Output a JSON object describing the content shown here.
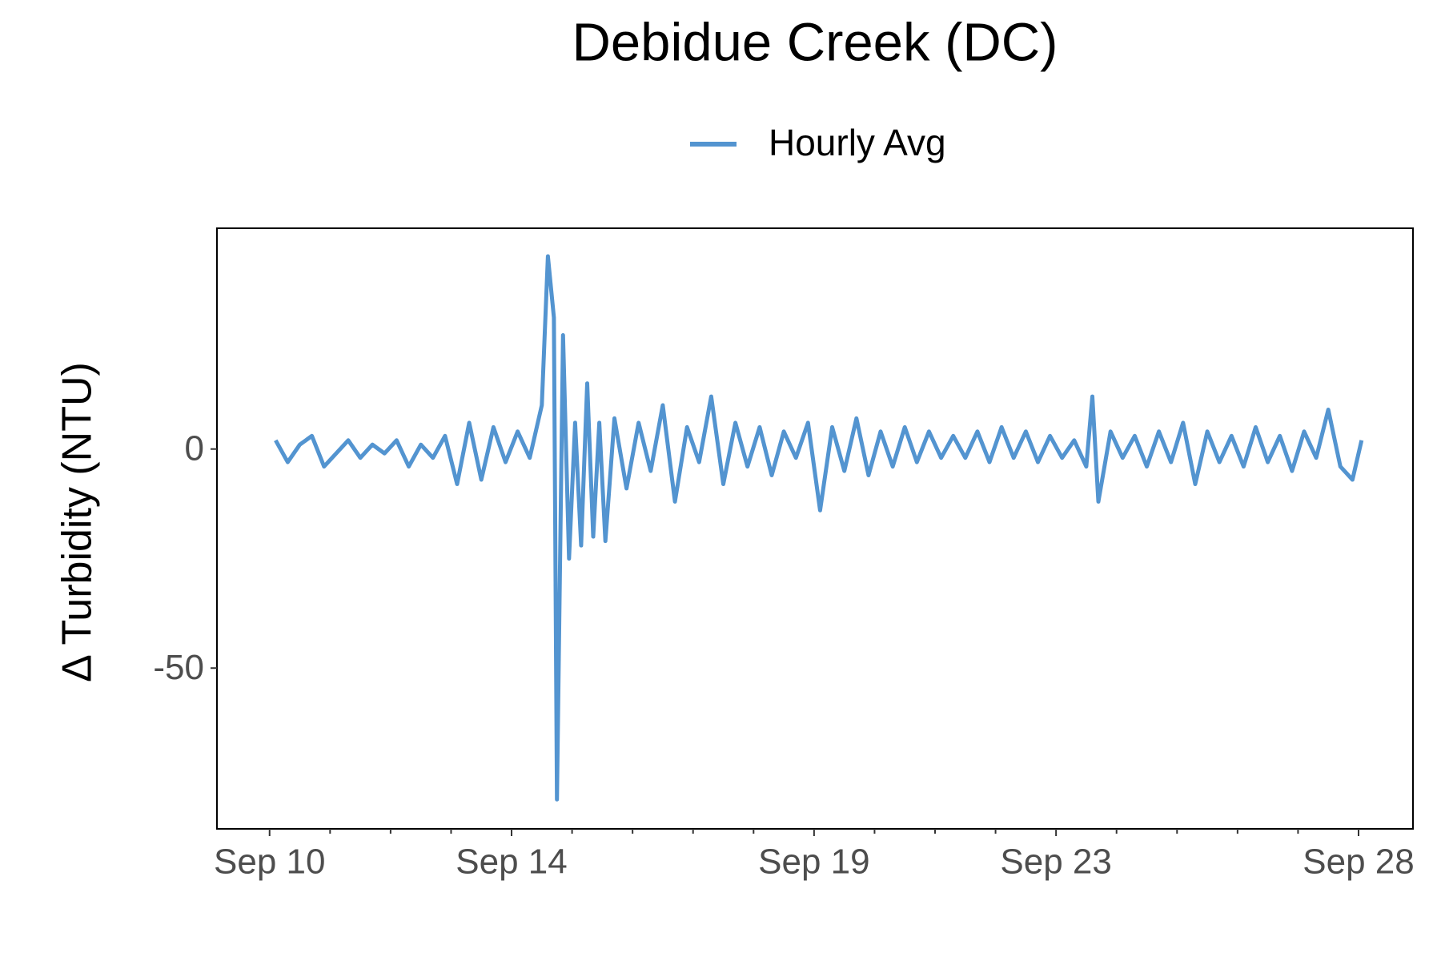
{
  "chart_data": {
    "type": "line",
    "title": "Debidue Creek (DC)",
    "y_label": "Δ Turbidity (NTU)",
    "x": [
      10.1,
      10.3,
      10.5,
      10.7,
      10.9,
      11.1,
      11.3,
      11.5,
      11.7,
      11.9,
      12.1,
      12.3,
      12.5,
      12.7,
      12.9,
      13.1,
      13.3,
      13.5,
      13.7,
      13.9,
      14.1,
      14.3,
      14.5,
      14.6,
      14.7,
      14.75,
      14.85,
      14.95,
      15.05,
      15.15,
      15.25,
      15.35,
      15.45,
      15.55,
      15.7,
      15.9,
      16.1,
      16.3,
      16.5,
      16.7,
      16.9,
      17.1,
      17.3,
      17.5,
      17.7,
      17.9,
      18.1,
      18.3,
      18.5,
      18.7,
      18.9,
      19.1,
      19.3,
      19.5,
      19.7,
      19.9,
      20.1,
      20.3,
      20.5,
      20.7,
      20.9,
      21.1,
      21.3,
      21.5,
      21.7,
      21.9,
      22.1,
      22.3,
      22.5,
      22.7,
      22.9,
      23.1,
      23.3,
      23.5,
      23.6,
      23.7,
      23.9,
      24.1,
      24.3,
      24.5,
      24.7,
      24.9,
      25.1,
      25.3,
      25.5,
      25.7,
      25.9,
      26.1,
      26.3,
      26.5,
      26.7,
      26.9,
      27.1,
      27.3,
      27.5,
      27.7,
      27.9,
      28.05
    ],
    "series": [
      {
        "name": "Hourly Avg",
        "color": "#5394d0",
        "values": [
          2,
          -3,
          1,
          3,
          -4,
          -1,
          2,
          -2,
          1,
          -1,
          2,
          -4,
          1,
          -2,
          3,
          -8,
          6,
          -7,
          5,
          -3,
          4,
          -2,
          10,
          44,
          30,
          -80,
          26,
          -25,
          6,
          -22,
          15,
          -20,
          6,
          -21,
          7,
          -9,
          6,
          -5,
          10,
          -12,
          5,
          -3,
          12,
          -8,
          6,
          -4,
          5,
          -6,
          4,
          -2,
          6,
          -14,
          5,
          -5,
          7,
          -6,
          4,
          -4,
          5,
          -3,
          4,
          -2,
          3,
          -2,
          4,
          -3,
          5,
          -2,
          4,
          -3,
          3,
          -2,
          2,
          -4,
          12,
          -12,
          4,
          -2,
          3,
          -4,
          4,
          -3,
          6,
          -8,
          4,
          -3,
          3,
          -4,
          5,
          -3,
          3,
          -5,
          4,
          -2,
          9,
          -4,
          -7,
          2
        ]
      }
    ],
    "xlim": [
      9.13,
      28.9
    ],
    "xticks": [
      {
        "value": 10,
        "label": "Sep 10"
      },
      {
        "value": 14,
        "label": "Sep 14"
      },
      {
        "value": 19,
        "label": "Sep 19"
      },
      {
        "value": 23,
        "label": "Sep 23"
      },
      {
        "value": 28,
        "label": "Sep 28"
      }
    ],
    "xminor_ticks": [
      11,
      12,
      13,
      15,
      16,
      17,
      18,
      20,
      21,
      22,
      24,
      25,
      26,
      27
    ],
    "ylim": [
      -86.7,
      50.4
    ],
    "yticks": [
      -50,
      0
    ],
    "grid": false
  }
}
